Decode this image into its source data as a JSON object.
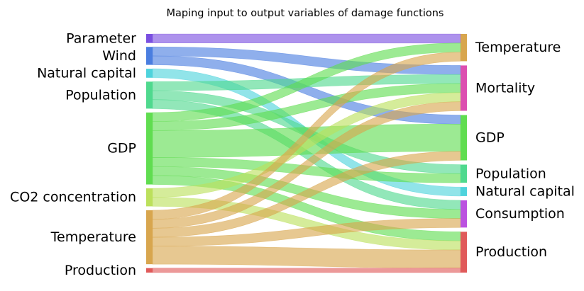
{
  "title": "Maping input to output variables of damage functions",
  "chart_data": {
    "type": "sankey",
    "title": "Maping input to output variables of damage functions",
    "inputs": [
      {
        "id": "parameter",
        "label": "Parameter",
        "color": "#7a4fe0"
      },
      {
        "id": "wind",
        "label": "Wind",
        "color": "#4a7ee0"
      },
      {
        "id": "natural_capital",
        "label": "Natural capital",
        "color": "#4ed3dc"
      },
      {
        "id": "population",
        "label": "Population",
        "color": "#4fd98e"
      },
      {
        "id": "gdp",
        "label": "GDP",
        "color": "#60dd50"
      },
      {
        "id": "co2",
        "label": "CO2 concentration",
        "color": "#bce05c"
      },
      {
        "id": "temperature",
        "label": "Temperature",
        "color": "#d8a64e"
      },
      {
        "id": "production",
        "label": "Production",
        "color": "#e05a5a"
      }
    ],
    "outputs": [
      {
        "id": "temperature",
        "label": "Temperature",
        "color": "#d8a64e"
      },
      {
        "id": "mortality",
        "label": "Mortality",
        "color": "#dc4fb0"
      },
      {
        "id": "gdp",
        "label": "GDP",
        "color": "#60dd50"
      },
      {
        "id": "population",
        "label": "Population",
        "color": "#4fd98e"
      },
      {
        "id": "natural_capital",
        "label": "Natural capital",
        "color": "#4ed3dc"
      },
      {
        "id": "consumption",
        "label": "Consumption",
        "color": "#bb52e0"
      },
      {
        "id": "production",
        "label": "Production",
        "color": "#e05a5a"
      }
    ],
    "links": [
      {
        "source": "parameter",
        "target": "temperature",
        "value": 1
      },
      {
        "source": "wind",
        "target": "mortality",
        "value": 1
      },
      {
        "source": "wind",
        "target": "gdp",
        "value": 1
      },
      {
        "source": "natural_capital",
        "target": "natural_capital",
        "value": 1
      },
      {
        "source": "population",
        "target": "mortality",
        "value": 1
      },
      {
        "source": "population",
        "target": "population",
        "value": 1
      },
      {
        "source": "population",
        "target": "consumption",
        "value": 1
      },
      {
        "source": "gdp",
        "target": "temperature",
        "value": 1
      },
      {
        "source": "gdp",
        "target": "mortality",
        "value": 1
      },
      {
        "source": "gdp",
        "target": "gdp",
        "value": 3
      },
      {
        "source": "gdp",
        "target": "population",
        "value": 1
      },
      {
        "source": "gdp",
        "target": "consumption",
        "value": 1
      },
      {
        "source": "gdp",
        "target": "production",
        "value": 1
      },
      {
        "source": "co2",
        "target": "mortality",
        "value": 1
      },
      {
        "source": "co2",
        "target": "production",
        "value": 1
      },
      {
        "source": "temperature",
        "target": "temperature",
        "value": 1
      },
      {
        "source": "temperature",
        "target": "mortality",
        "value": 1
      },
      {
        "source": "temperature",
        "target": "gdp",
        "value": 1
      },
      {
        "source": "temperature",
        "target": "consumption",
        "value": 1
      },
      {
        "source": "temperature",
        "target": "production",
        "value": 2
      },
      {
        "source": "production",
        "target": "production",
        "value": 0.5
      }
    ]
  }
}
